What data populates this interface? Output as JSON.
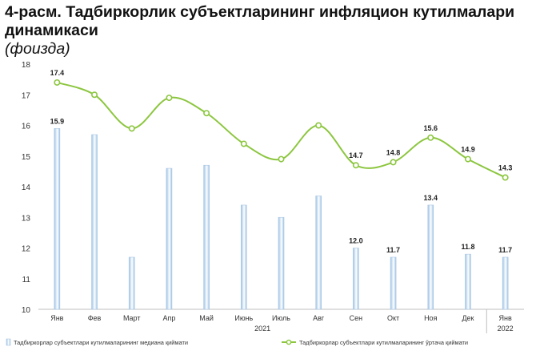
{
  "figure": {
    "title": "4-расм.  Тадбиркорлик субъектларининг инфляцион кутилмалари динамикаси",
    "subtitle": "(фоизда)"
  },
  "chart_data": {
    "type": "bar+line",
    "categories": [
      "Янв",
      "Фев",
      "Март",
      "Апр",
      "Май",
      "Июнь",
      "Июль",
      "Авг",
      "Сен",
      "Окт",
      "Ноя",
      "Дек",
      "Янв"
    ],
    "year_labels": [
      {
        "label": "2021",
        "from": 0,
        "to": 11
      },
      {
        "label": "2022",
        "from": 12,
        "to": 12
      }
    ],
    "series": [
      {
        "name": "Тадбиркорлар субъектлари кутилмаларининг медиана қиймати",
        "kind": "bar",
        "values": [
          15.9,
          15.7,
          11.7,
          14.6,
          14.7,
          13.4,
          13.0,
          13.7,
          12.0,
          11.7,
          13.4,
          11.8,
          11.7
        ],
        "labels": [
          "15.9",
          "",
          "",
          "",
          "",
          "",
          "",
          "",
          "12.0",
          "11.7",
          "13.4",
          "11.8",
          "11.7"
        ],
        "color": "#9dc3e6"
      },
      {
        "name": "Тадбиркорлар субъектлари кутилмаларининг ўртача қиймати",
        "kind": "line",
        "values": [
          17.4,
          17.0,
          15.9,
          16.9,
          16.4,
          15.4,
          14.9,
          16.0,
          14.7,
          14.8,
          15.6,
          14.9,
          14.3
        ],
        "labels": [
          "17.4",
          "",
          "",
          "",
          "",
          "",
          "",
          "",
          "14.7",
          "14.8",
          "15.6",
          "14.9",
          "14.3"
        ],
        "color": "#8cc63f"
      }
    ],
    "ylim": [
      10,
      18
    ],
    "yticks": [
      10,
      11,
      12,
      13,
      14,
      15,
      16,
      17,
      18
    ],
    "grid": false,
    "legend_position": "bottom"
  }
}
